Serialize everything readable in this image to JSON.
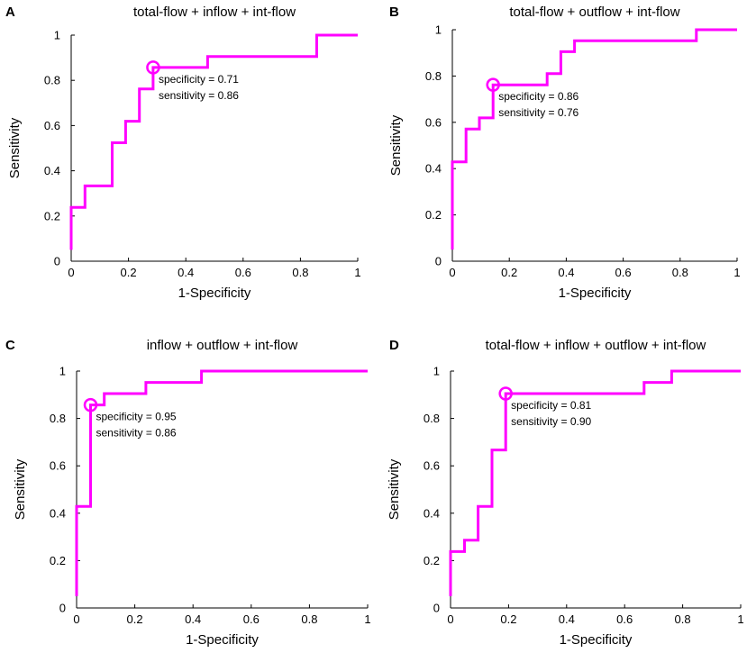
{
  "figure": {
    "line_color": "#ff00ff"
  },
  "chart_data": [
    {
      "type": "line",
      "panel": "A",
      "title": "total-flow + inflow + int-flow",
      "xlabel": "1-Specificity",
      "ylabel": "Sensitivity",
      "xlim": [
        0,
        1
      ],
      "ylim": [
        0,
        1
      ],
      "xticks": [
        "0",
        "0.2",
        "0.4",
        "0.6",
        "0.8",
        "1"
      ],
      "yticks": [
        "0",
        "0.2",
        "0.4",
        "0.6",
        "0.8",
        "1"
      ],
      "grid": false,
      "series": [
        {
          "name": "ROC",
          "x": [
            0,
            0,
            0.048,
            0.048,
            0.143,
            0.143,
            0.19,
            0.19,
            0.238,
            0.238,
            0.286,
            0.286,
            0.476,
            0.476,
            0.857,
            0.857,
            1.0
          ],
          "y": [
            0.05,
            0.238,
            0.238,
            0.333,
            0.333,
            0.524,
            0.524,
            0.619,
            0.619,
            0.762,
            0.762,
            0.857,
            0.857,
            0.905,
            0.905,
            1.0,
            1.0
          ]
        }
      ],
      "operating_point": {
        "x": 0.286,
        "y": 0.857,
        "specificity_text": "specificity = 0.71",
        "sensitivity_text": "sensitivity = 0.86"
      }
    },
    {
      "type": "line",
      "panel": "B",
      "title": "total-flow + outflow + int-flow",
      "xlabel": "1-Specificity",
      "ylabel": "Sensitivity",
      "xlim": [
        0,
        1
      ],
      "ylim": [
        0,
        1
      ],
      "xticks": [
        "0",
        "0.2",
        "0.4",
        "0.6",
        "0.8",
        "1"
      ],
      "yticks": [
        "0",
        "0.2",
        "0.4",
        "0.6",
        "0.8",
        "1"
      ],
      "grid": false,
      "series": [
        {
          "name": "ROC",
          "x": [
            0,
            0,
            0.048,
            0.048,
            0.095,
            0.095,
            0.143,
            0.143,
            0.333,
            0.333,
            0.381,
            0.381,
            0.429,
            0.429,
            0.857,
            0.857,
            1.0
          ],
          "y": [
            0.05,
            0.429,
            0.429,
            0.571,
            0.571,
            0.619,
            0.619,
            0.762,
            0.762,
            0.81,
            0.81,
            0.905,
            0.905,
            0.952,
            0.952,
            1.0,
            1.0
          ]
        }
      ],
      "operating_point": {
        "x": 0.143,
        "y": 0.762,
        "specificity_text": "specificity = 0.86",
        "sensitivity_text": "sensitivity = 0.76"
      }
    },
    {
      "type": "line",
      "panel": "C",
      "title": "inflow + outflow + int-flow",
      "xlabel": "1-Specificity",
      "ylabel": "Sensitivity",
      "xlim": [
        0,
        1
      ],
      "ylim": [
        0,
        1
      ],
      "xticks": [
        "0",
        "0.2",
        "0.4",
        "0.6",
        "0.8",
        "1"
      ],
      "yticks": [
        "0",
        "0.2",
        "0.4",
        "0.6",
        "0.8",
        "1"
      ],
      "grid": false,
      "series": [
        {
          "name": "ROC",
          "x": [
            0,
            0,
            0.048,
            0.048,
            0.095,
            0.095,
            0.238,
            0.238,
            0.429,
            0.429,
            1.0
          ],
          "y": [
            0.05,
            0.429,
            0.429,
            0.857,
            0.857,
            0.905,
            0.905,
            0.952,
            0.952,
            1.0,
            1.0
          ]
        }
      ],
      "operating_point": {
        "x": 0.048,
        "y": 0.857,
        "specificity_text": "specificity = 0.95",
        "sensitivity_text": "sensitivity = 0.86"
      }
    },
    {
      "type": "line",
      "panel": "D",
      "title": "total-flow + inflow + outflow + int-flow",
      "xlabel": "1-Specificity",
      "ylabel": "Sensitivity",
      "xlim": [
        0,
        1
      ],
      "ylim": [
        0,
        1
      ],
      "xticks": [
        "0",
        "0.2",
        "0.4",
        "0.6",
        "0.8",
        "1"
      ],
      "yticks": [
        "0",
        "0.2",
        "0.4",
        "0.6",
        "0.8",
        "1"
      ],
      "grid": false,
      "series": [
        {
          "name": "ROC",
          "x": [
            0,
            0,
            0.048,
            0.048,
            0.095,
            0.095,
            0.143,
            0.143,
            0.19,
            0.19,
            0.667,
            0.667,
            0.762,
            0.762,
            1.0
          ],
          "y": [
            0.05,
            0.238,
            0.238,
            0.286,
            0.286,
            0.429,
            0.429,
            0.667,
            0.667,
            0.905,
            0.905,
            0.952,
            0.952,
            1.0,
            1.0
          ]
        }
      ],
      "operating_point": {
        "x": 0.19,
        "y": 0.905,
        "specificity_text": "specificity = 0.81",
        "sensitivity_text": "sensitivity = 0.90"
      }
    }
  ]
}
